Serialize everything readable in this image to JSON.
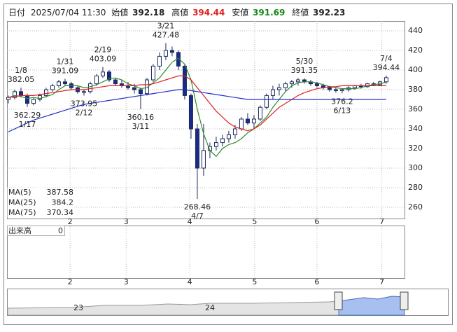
{
  "chart_data": {
    "type": "candlestick",
    "header": {
      "date_label": "日付",
      "date": "2025/07/04 11:30",
      "open_label": "始値",
      "open": 392.18,
      "high_label": "高値",
      "high": 394.44,
      "low_label": "安値",
      "low": 391.69,
      "close_label": "終値",
      "close": 392.23
    },
    "x": [
      0,
      1,
      2,
      3,
      4,
      5,
      6,
      7,
      8,
      9,
      10,
      11,
      12,
      13,
      14,
      15,
      16,
      17,
      18,
      19,
      20,
      21,
      22,
      23,
      24,
      25,
      26,
      27,
      28,
      29,
      30,
      31,
      32,
      33,
      34,
      35,
      36,
      37,
      38,
      39,
      40,
      41,
      42,
      43,
      44,
      45,
      46,
      47,
      48,
      49,
      50,
      51,
      52,
      53,
      54,
      55,
      56,
      57,
      58,
      59,
      60
    ],
    "candles": [
      [
        370,
        374,
        366,
        372
      ],
      [
        372,
        380,
        370,
        378
      ],
      [
        378,
        382.05,
        372,
        374
      ],
      [
        374,
        376,
        362.29,
        366
      ],
      [
        366,
        372,
        364,
        370
      ],
      [
        370,
        376,
        368,
        374
      ],
      [
        374,
        382,
        372,
        380
      ],
      [
        380,
        386,
        378,
        384
      ],
      [
        384,
        390,
        382,
        388
      ],
      [
        388,
        391.09,
        384,
        386
      ],
      [
        386,
        388,
        380,
        382
      ],
      [
        382,
        384,
        376,
        378
      ],
      [
        378,
        380,
        373.95,
        378
      ],
      [
        378,
        388,
        376,
        386
      ],
      [
        386,
        396,
        384,
        394
      ],
      [
        394,
        403.09,
        392,
        398
      ],
      [
        398,
        400,
        388,
        390
      ],
      [
        390,
        392,
        384,
        386
      ],
      [
        386,
        390,
        382,
        384
      ],
      [
        384,
        388,
        380,
        382
      ],
      [
        382,
        386,
        376,
        380
      ],
      [
        380,
        382,
        360.16,
        376
      ],
      [
        376,
        392,
        374,
        390
      ],
      [
        390,
        406,
        388,
        404
      ],
      [
        404,
        418,
        400,
        414
      ],
      [
        414,
        427.48,
        410,
        420
      ],
      [
        420,
        424,
        414,
        418
      ],
      [
        418,
        420,
        400,
        404
      ],
      [
        404,
        406,
        370,
        374
      ],
      [
        374,
        376,
        330,
        340
      ],
      [
        340,
        345,
        268.46,
        300
      ],
      [
        300,
        345,
        292,
        318
      ],
      [
        318,
        326,
        310,
        322
      ],
      [
        322,
        332,
        318,
        326
      ],
      [
        326,
        334,
        322,
        330
      ],
      [
        330,
        338,
        326,
        334
      ],
      [
        334,
        344,
        330,
        340
      ],
      [
        340,
        352,
        338,
        350
      ],
      [
        350,
        356,
        344,
        346
      ],
      [
        346,
        354,
        340,
        350
      ],
      [
        350,
        364,
        348,
        362
      ],
      [
        362,
        376,
        360,
        374
      ],
      [
        374,
        384,
        370,
        380
      ],
      [
        380,
        386,
        374,
        382
      ],
      [
        382,
        388,
        378,
        386
      ],
      [
        386,
        390,
        382,
        388
      ],
      [
        388,
        392,
        384,
        390
      ],
      [
        390,
        391.35,
        386,
        388
      ],
      [
        388,
        390,
        384,
        386
      ],
      [
        386,
        388,
        382,
        384
      ],
      [
        384,
        386,
        380,
        382
      ],
      [
        382,
        384,
        378,
        380
      ],
      [
        380,
        382,
        377,
        379
      ],
      [
        379,
        381,
        376.2,
        380
      ],
      [
        380,
        384,
        378,
        382
      ],
      [
        382,
        385,
        380,
        384
      ],
      [
        384,
        386,
        381,
        383
      ],
      [
        383,
        387,
        382,
        386
      ],
      [
        386,
        388,
        384,
        385
      ],
      [
        385,
        389,
        384,
        388
      ],
      [
        388,
        394.44,
        386,
        392.23
      ]
    ],
    "series": [
      {
        "name": "MA(5)",
        "color": "#2e8b2e",
        "values": [
          372,
          374,
          373,
          371,
          372,
          371,
          373,
          375,
          380,
          384,
          384,
          384,
          382,
          383,
          385,
          388,
          391,
          392,
          390,
          386,
          384,
          381,
          382,
          387,
          392,
          400,
          408,
          412,
          406,
          390,
          360,
          335,
          318,
          312,
          320,
          324,
          326,
          330,
          336,
          340,
          346,
          352,
          362,
          370,
          378,
          384,
          387,
          388,
          388,
          387,
          385,
          383,
          382,
          381,
          381,
          381,
          382,
          384,
          385,
          386,
          387.58
        ]
      },
      {
        "name": "MA(25)",
        "color": "#e02020",
        "values": [
          372,
          373,
          374,
          374,
          374,
          375,
          376,
          377,
          378,
          379,
          380,
          380,
          380,
          381,
          382,
          383,
          384,
          384,
          384,
          384,
          384,
          385,
          385,
          386,
          388,
          390,
          392,
          394,
          394,
          390,
          382,
          374,
          366,
          358,
          352,
          346,
          342,
          340,
          338,
          340,
          344,
          350,
          356,
          362,
          366,
          370,
          374,
          377,
          379,
          381,
          382,
          383,
          383,
          384,
          384,
          384,
          384,
          384,
          384,
          384,
          384.2
        ]
      },
      {
        "name": "MA(75)",
        "color": "#2030d0",
        "values": [
          337,
          340,
          343,
          346,
          349,
          351,
          353,
          355,
          357,
          359,
          361,
          363,
          365,
          366,
          367,
          368,
          369,
          370,
          371,
          372,
          373,
          374,
          375,
          376,
          377,
          378,
          379,
          380,
          380,
          379,
          378,
          377,
          376,
          375,
          374,
          373,
          372,
          371,
          370,
          370,
          370,
          370,
          370,
          370,
          370,
          370,
          370,
          370,
          370,
          370,
          370,
          370,
          370,
          370,
          370,
          370,
          370,
          370,
          370,
          370,
          370.34
        ]
      }
    ],
    "annotations": [
      {
        "x": 2,
        "date": "1/8",
        "value": 382.05
      },
      {
        "x": 3,
        "date": "1/17",
        "value": 362.29
      },
      {
        "x": 9,
        "date": "1/31",
        "value": 391.09
      },
      {
        "x": 12,
        "date": "2/12",
        "value": 373.95
      },
      {
        "x": 15,
        "date": "2/19",
        "value": 403.09
      },
      {
        "x": 21,
        "date": "3/11",
        "value": 360.16
      },
      {
        "x": 25,
        "date": "3/21",
        "value": 427.48
      },
      {
        "x": 30,
        "date": "4/7",
        "value": 268.46
      },
      {
        "x": 47,
        "date": "5/30",
        "value": 391.35
      },
      {
        "x": 53,
        "date": "6/13",
        "value": 376.2
      },
      {
        "x": 60,
        "date": "7/4",
        "value": 394.44
      }
    ],
    "xlim": [
      -0.22,
      62.9
    ],
    "xticks": [
      {
        "value": 9.8,
        "label": "2"
      },
      {
        "value": 18.7,
        "label": "3"
      },
      {
        "value": 28.8,
        "label": "4"
      },
      {
        "value": 39.1,
        "label": "5"
      },
      {
        "value": 49,
        "label": "6"
      },
      {
        "value": 59.3,
        "label": "7"
      }
    ],
    "ylim": [
      248.57,
      450
    ],
    "yticks": [
      260,
      280,
      300,
      320,
      340,
      360,
      380,
      400,
      420,
      440
    ],
    "grid": true,
    "volume": {
      "label": "出来高",
      "yticks": [
        0
      ]
    },
    "navigator": {
      "labels": [
        "23",
        "24"
      ]
    }
  }
}
